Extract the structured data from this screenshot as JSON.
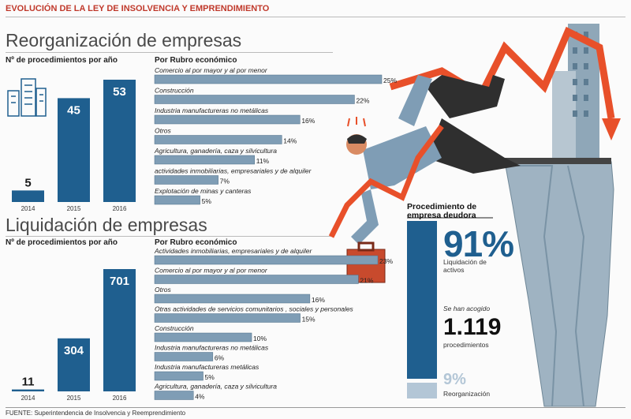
{
  "title": "EVOLUCIÓN DE LA LEY DE INSOLVENCIA Y EMPRENDIMIENTO",
  "sections": [
    {
      "title": "Reorganización de empresas",
      "years_label": "Nº de procedimientos por año",
      "rubro_label": "Por Rubro económico"
    },
    {
      "title": "Liquidación de empresas",
      "years_label": "Nº de procedimientos por año",
      "rubro_label": "Por Rubro económico"
    }
  ],
  "procedure": {
    "title": "Procedimiento de empresa deudora",
    "liquidacion_pct": "91%",
    "liquidacion_label": "Liquidación de activos",
    "acogido_label": "Se han acogido",
    "count": "1.119",
    "count_label": "procedimientos",
    "reorganizacion_pct": "9%",
    "reorganizacion_label": "Reorganización"
  },
  "source": "FUENTE: Superintendencia de Insolvencia y Reemprendimiento",
  "colors": {
    "title_red": "#c0392b",
    "bar_dark": "#1f5f8f",
    "bar_light": "#7f9db5",
    "accent_red": "#e8502a"
  },
  "chart_data": [
    {
      "type": "bar",
      "title": "Reorganización de empresas — Nº de procedimientos por año",
      "categories": [
        "2014",
        "2015",
        "2016"
      ],
      "values": [
        5,
        45,
        53
      ]
    },
    {
      "type": "bar",
      "orientation": "horizontal",
      "title": "Reorganización de empresas — Por Rubro económico",
      "categories": [
        "Comercio al por mayor y al por menor",
        "Construcción",
        "Industria manufactureras no metálicas",
        "Otros",
        "Agricultura, ganadería, caza y silvicultura",
        "actividades inmobiliarias, empresariales y de alquiler",
        "Explotación de minas y canteras"
      ],
      "values": [
        25,
        22,
        16,
        14,
        11,
        7,
        5
      ],
      "value_suffix": "%"
    },
    {
      "type": "bar",
      "title": "Liquidación de empresas — Nº de procedimientos por año",
      "categories": [
        "2014",
        "2015",
        "2016"
      ],
      "values": [
        11,
        304,
        701
      ]
    },
    {
      "type": "bar",
      "orientation": "horizontal",
      "title": "Liquidación de empresas — Por Rubro económico",
      "categories": [
        "Actividades inmobiliarias, empresariales y de alquiler",
        "Comercio al por mayor y al por menor",
        "Otros",
        "Otras actividades de servicios comunitarios , sociales y personales",
        "Construcción",
        "Industria manufactureras no metálicas",
        "Industria manufactureras metálicas",
        "Agricultura, ganadería, caza y silvicultura"
      ],
      "values": [
        23,
        21,
        16,
        15,
        10,
        6,
        5,
        4
      ],
      "value_suffix": "%"
    }
  ]
}
